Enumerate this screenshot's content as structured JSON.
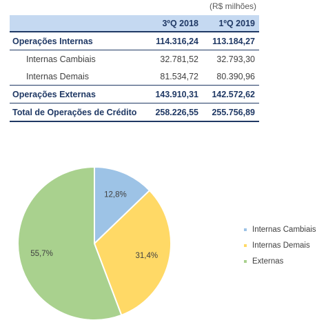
{
  "table": {
    "unit": "(R$ milhões)",
    "headers": [
      "",
      "3ºQ 2018",
      "1ºQ 2019"
    ],
    "rows": [
      {
        "label": "Operações Internas",
        "values": [
          "114.316,24",
          "113.184,27"
        ],
        "style": "bold"
      },
      {
        "label": "Internas Cambiais",
        "values": [
          "32.781,52",
          "32.793,30"
        ],
        "style": "sub"
      },
      {
        "label": "Internas Demais",
        "values": [
          "81.534,72",
          "80.390,96"
        ],
        "style": "sub"
      },
      {
        "label": "Operações Externas",
        "values": [
          "143.910,31",
          "142.572,62"
        ],
        "style": "bold"
      },
      {
        "label": "Total de Operações de Crédito",
        "values": [
          "258.226,55",
          "255.756,89"
        ],
        "style": "bold"
      }
    ]
  },
  "chart_data": {
    "type": "pie",
    "categories": [
      "Internas Cambiais",
      "Internas Demais",
      "Externas"
    ],
    "values": [
      12.8,
      31.4,
      55.7
    ],
    "data_labels": [
      "12,8%",
      "31,4%",
      "55,7%"
    ],
    "colors": [
      "#9dc3e6",
      "#ffd966",
      "#a9d18e"
    ],
    "legend_position": "right"
  }
}
